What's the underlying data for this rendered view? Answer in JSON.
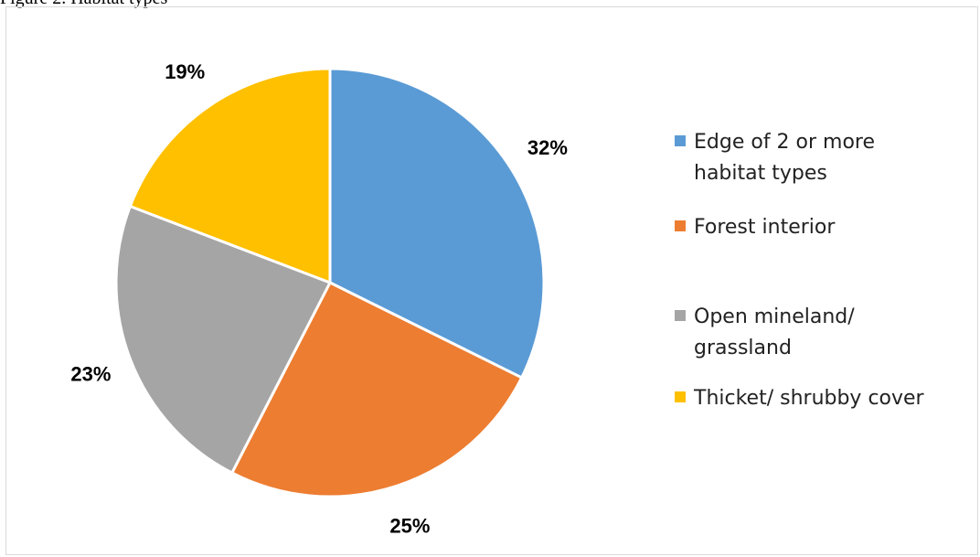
{
  "caption": "Figure 2. Habitat types",
  "chart_data": {
    "type": "pie",
    "title": "",
    "categories": [
      "Edge of 2 or more habitat types",
      "Forest interior",
      "Open mineland/ grassland",
      "Thicket/ shrubby cover"
    ],
    "legend_lines": [
      [
        "Edge of 2 or more",
        "habitat types"
      ],
      [
        "Forest interior"
      ],
      [
        "Open mineland/",
        "grassland"
      ],
      [
        "Thicket/ shrubby cover"
      ]
    ],
    "values": [
      32,
      25,
      23,
      19
    ],
    "data_labels": [
      "32%",
      "25%",
      "23%",
      "19%"
    ],
    "colors": [
      "#5b9bd5",
      "#ed7d31",
      "#a5a5a5",
      "#ffc000"
    ],
    "legend_position": "right",
    "start_angle": "12 o'clock",
    "direction": "clockwise"
  }
}
